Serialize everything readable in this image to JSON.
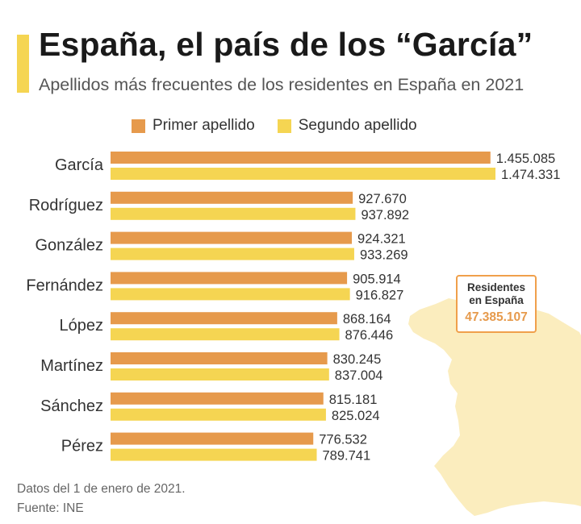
{
  "header": {
    "title": "España, el país de los “García”",
    "subtitle": "Apellidos más frecuentes de los residentes en España en 2021"
  },
  "legend": {
    "primer": "Primer apellido",
    "segundo": "Segundo apellido"
  },
  "colors": {
    "primer": "#E69A4C",
    "segundo": "#F5D552",
    "accent": "#F5D552",
    "map_fill": "#FBEDBE",
    "text": "#333333"
  },
  "info_box": {
    "label": "Residentes en España",
    "value": "47.385.107",
    "value_color": "#E69A4C"
  },
  "map": {
    "icon": "spain-map-icon"
  },
  "footer": {
    "note": "Datos del 1 de enero de 2021.",
    "source": "Fuente: INE"
  },
  "chart_data": {
    "type": "bar",
    "orientation": "horizontal",
    "categories": [
      "García",
      "Rodríguez",
      "González",
      "Fernández",
      "López",
      "Martínez",
      "Sánchez",
      "Pérez"
    ],
    "series": [
      {
        "name": "Primer apellido",
        "values": [
          1455085,
          927670,
          924321,
          905914,
          868164,
          830245,
          815181,
          776532
        ],
        "labels": [
          "1.455.085",
          "927.670",
          "924.321",
          "905.914",
          "868.164",
          "830.245",
          "815.181",
          "776.532"
        ]
      },
      {
        "name": "Segundo apellido",
        "values": [
          1474331,
          937892,
          933269,
          916827,
          876446,
          837004,
          825024,
          789741
        ],
        "labels": [
          "1.474.331",
          "937.892",
          "933.269",
          "916.827",
          "876.446",
          "837.004",
          "825.024",
          "789.741"
        ]
      }
    ],
    "xlim": [
      0,
      1474331
    ],
    "grid": false,
    "legend_position": "top"
  }
}
